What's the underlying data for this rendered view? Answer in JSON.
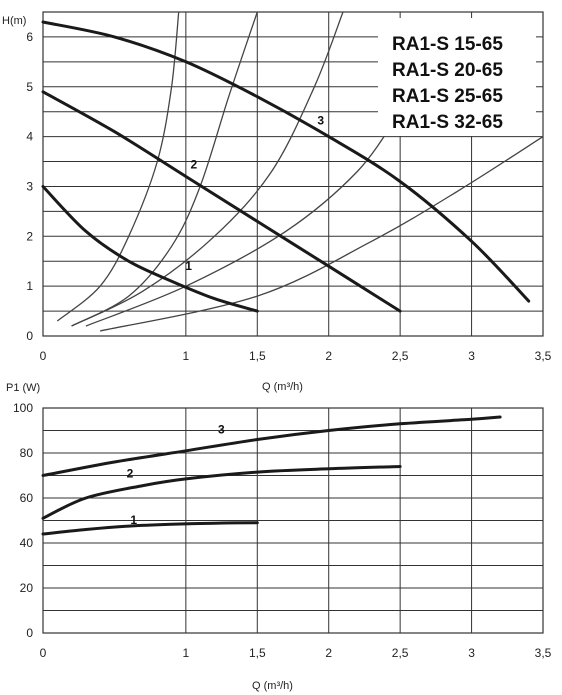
{
  "chart_data": [
    {
      "type": "line",
      "ylabel": "H(m)",
      "xlabel": "Q (m³/h)",
      "xlim": [
        0,
        3.5
      ],
      "ylim": [
        0,
        6.5
      ],
      "x_ticks": [
        "0",
        "1",
        "1,5",
        "2",
        "2,5",
        "3",
        "3,5"
      ],
      "y_ticks": [
        "0",
        "1",
        "2",
        "3",
        "4",
        "5",
        "6"
      ],
      "grid": true,
      "models": [
        "RA1-S 15-65",
        "RA1-S 20-65",
        "RA1-S 25-65",
        "RA1-S 32-65"
      ],
      "series": [
        {
          "name": "1",
          "x": [
            0.0,
            0.3,
            0.6,
            0.9,
            1.2,
            1.5
          ],
          "y": [
            3.0,
            2.1,
            1.5,
            1.1,
            0.75,
            0.5
          ]
        },
        {
          "name": "2",
          "x": [
            0.0,
            0.5,
            1.0,
            1.5,
            2.0,
            2.5
          ],
          "y": [
            4.9,
            4.1,
            3.2,
            2.3,
            1.4,
            0.5
          ]
        },
        {
          "name": "3",
          "x": [
            0.0,
            0.5,
            1.0,
            1.5,
            2.0,
            2.5,
            3.0,
            3.4
          ],
          "y": [
            6.3,
            6.0,
            5.5,
            4.8,
            4.0,
            3.1,
            1.9,
            0.7
          ]
        }
      ],
      "system_curves": [
        {
          "x": [
            0.1,
            0.4,
            0.6,
            0.8,
            0.9,
            0.95
          ],
          "y": [
            0.3,
            1.0,
            2.0,
            3.5,
            5.0,
            6.5
          ]
        },
        {
          "x": [
            0.2,
            0.6,
            0.9,
            1.1,
            1.3,
            1.5
          ],
          "y": [
            0.2,
            0.8,
            1.8,
            3.0,
            4.8,
            6.5
          ]
        },
        {
          "x": [
            0.2,
            0.7,
            1.2,
            1.6,
            1.9,
            2.1
          ],
          "y": [
            0.2,
            0.9,
            2.0,
            3.3,
            5.0,
            6.5
          ]
        },
        {
          "x": [
            0.3,
            1.0,
            1.7,
            2.2,
            2.5
          ],
          "y": [
            0.2,
            1.0,
            2.1,
            3.3,
            4.5
          ]
        },
        {
          "x": [
            0.4,
            1.5,
            2.3,
            2.9,
            3.5
          ],
          "y": [
            0.1,
            0.8,
            1.9,
            2.9,
            4.0
          ]
        }
      ]
    },
    {
      "type": "line",
      "ylabel": "P1 (W)",
      "xlabel": "Q (m³/h)",
      "xlim": [
        0,
        3.5
      ],
      "ylim": [
        0,
        100
      ],
      "x_ticks": [
        "0",
        "1",
        "1,5",
        "2",
        "2,5",
        "3",
        "3,5"
      ],
      "y_ticks": [
        "0",
        "20",
        "40",
        "60",
        "80",
        "100"
      ],
      "grid": true,
      "series": [
        {
          "name": "1",
          "x": [
            0.0,
            0.3,
            0.6,
            0.9,
            1.2,
            1.5
          ],
          "y": [
            44,
            46,
            47.5,
            48.3,
            48.8,
            49
          ]
        },
        {
          "name": "2",
          "x": [
            0.0,
            0.3,
            0.7,
            1.0,
            1.5,
            2.0,
            2.5
          ],
          "y": [
            51,
            60,
            65.5,
            68.5,
            71.5,
            73,
            74
          ]
        },
        {
          "name": "3",
          "x": [
            0.0,
            0.5,
            1.0,
            1.5,
            2.0,
            2.5,
            3.0,
            3.2
          ],
          "y": [
            70,
            76,
            81,
            86,
            90,
            93,
            95,
            96
          ]
        }
      ]
    }
  ]
}
